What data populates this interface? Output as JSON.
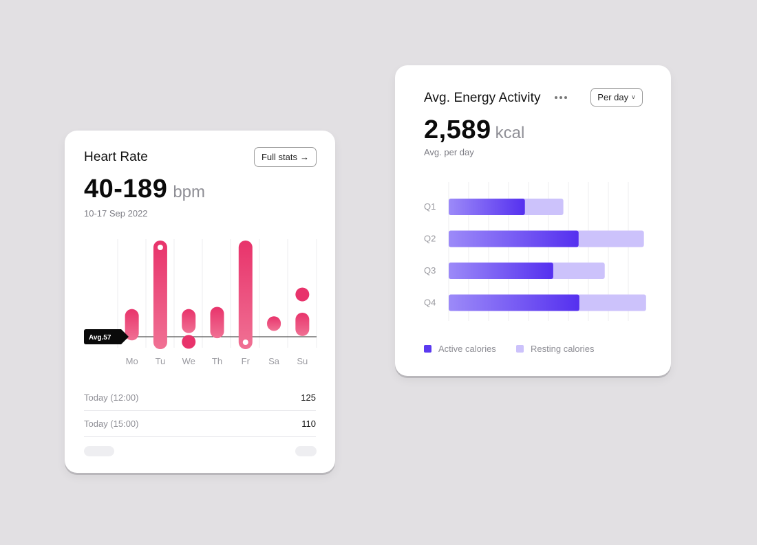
{
  "heart_rate": {
    "title": "Heart Rate",
    "full_stats_label": "Full stats",
    "range_value": "40-189",
    "range_unit": "bpm",
    "date_range": "10-17 Sep 2022",
    "avg_label": "Avg.57",
    "rows": [
      {
        "label": "Today (12:00)",
        "value": "125"
      },
      {
        "label": "Today (15:00)",
        "value": "110"
      }
    ],
    "accent": "#e8336b"
  },
  "energy": {
    "title": "Avg. Energy Activity",
    "period_label": "Per day",
    "value": "2,589",
    "unit": "kcal",
    "caption": "Avg. per day",
    "legend": [
      {
        "label": "Active calories",
        "color": "#5b3af0"
      },
      {
        "label": "Resting calories",
        "color": "#ccc2fb"
      }
    ]
  },
  "chart_data": [
    {
      "type": "bar",
      "categories": [
        "Mo",
        "Tu",
        "We",
        "Th",
        "Fr",
        "Sa",
        "Su"
      ],
      "series": [
        {
          "values": [
            {
              "low": 52,
              "high": 95
            },
            {
              "low": 40,
              "high": 189
            },
            {
              "low": 62,
              "high": 95
            },
            {
              "low": 55,
              "high": 98
            },
            {
              "low": 40,
              "high": 189
            },
            {
              "low": 65,
              "high": 85
            },
            {
              "low": 58,
              "high": 90
            }
          ]
        }
      ],
      "outliers": [
        {
          "category": "We",
          "value": 50
        },
        {
          "category": "Su",
          "value": 115
        }
      ],
      "average": 57,
      "colors": {
        "bar_top": "#e8336b",
        "bar_bottom": "#f07194"
      }
    },
    {
      "type": "bar",
      "orientation": "horizontal",
      "stacked": true,
      "categories": [
        "Q1",
        "Q2",
        "Q3",
        "Q4"
      ],
      "series": [
        {
          "name": "Active calories",
          "values": [
            1050,
            1790,
            1440,
            1800
          ]
        },
        {
          "name": "Resting calories",
          "values": [
            530,
            900,
            710,
            920
          ]
        }
      ],
      "xlim": [
        0,
        2750
      ]
    }
  ]
}
